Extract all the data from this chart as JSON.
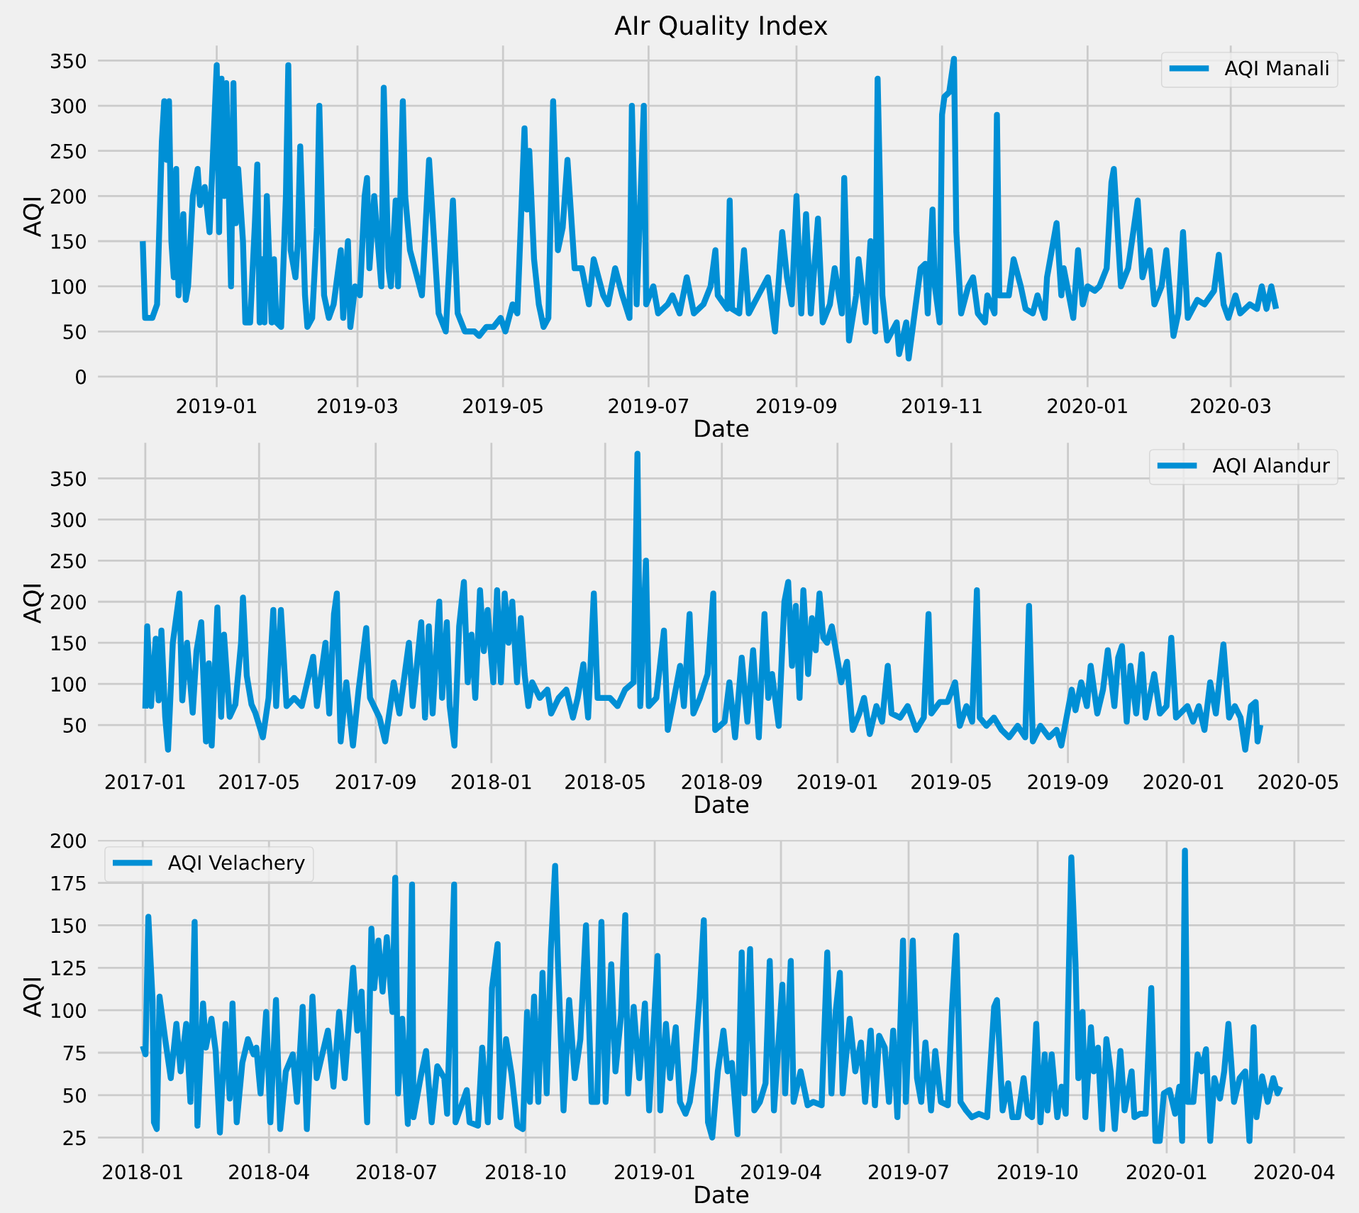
{
  "chart_data": [
    {
      "type": "line",
      "title": "AIr Quality Index",
      "xlabel": "Date",
      "ylabel": "AQI",
      "grid": true,
      "legend": "top right",
      "xlim": [
        "2018-11-11",
        "2020-04-19"
      ],
      "xticks": [
        "2019-01",
        "2019-03",
        "2019-05",
        "2019-07",
        "2019-09",
        "2019-11",
        "2020-01",
        "2020-03"
      ],
      "ylim": [
        -15,
        370
      ],
      "yticks": [
        0,
        50,
        100,
        150,
        200,
        250,
        300,
        350
      ],
      "series": [
        {
          "name": "AQI Manali",
          "color": "#008fd5",
          "x": [
            "2018-12-01",
            "2018-12-02",
            "2018-12-05",
            "2018-12-07",
            "2018-12-09",
            "2018-12-10",
            "2018-12-11",
            "2018-12-12",
            "2018-12-13",
            "2018-12-14",
            "2018-12-15",
            "2018-12-16",
            "2018-12-18",
            "2018-12-19",
            "2018-12-20",
            "2018-12-22",
            "2018-12-24",
            "2018-12-25",
            "2018-12-27",
            "2018-12-29",
            "2018-12-30",
            "2019-01-01",
            "2019-01-02",
            "2019-01-03",
            "2019-01-04",
            "2019-01-05",
            "2019-01-07",
            "2019-01-08",
            "2019-01-09",
            "2019-01-10",
            "2019-01-12",
            "2019-01-13",
            "2019-01-15",
            "2019-01-17",
            "2019-01-18",
            "2019-01-19",
            "2019-01-20",
            "2019-01-21",
            "2019-01-22",
            "2019-01-24",
            "2019-01-25",
            "2019-01-26",
            "2019-01-28",
            "2019-01-30",
            "2019-01-31",
            "2019-02-01",
            "2019-02-03",
            "2019-02-04",
            "2019-02-05",
            "2019-02-07",
            "2019-02-08",
            "2019-02-10",
            "2019-02-12",
            "2019-02-13",
            "2019-02-15",
            "2019-02-17",
            "2019-02-19",
            "2019-02-22",
            "2019-02-23",
            "2019-02-25",
            "2019-02-26",
            "2019-02-28",
            "2019-03-02",
            "2019-03-04",
            "2019-03-05",
            "2019-03-06",
            "2019-03-08",
            "2019-03-11",
            "2019-03-12",
            "2019-03-14",
            "2019-03-15",
            "2019-03-17",
            "2019-03-18",
            "2019-03-20",
            "2019-03-21",
            "2019-03-23",
            "2019-03-25",
            "2019-03-28",
            "2019-03-31",
            "2019-04-04",
            "2019-04-07",
            "2019-04-10",
            "2019-04-12",
            "2019-04-15",
            "2019-04-19",
            "2019-04-21",
            "2019-04-24",
            "2019-04-27",
            "2019-04-30",
            "2019-05-02",
            "2019-05-05",
            "2019-05-07",
            "2019-05-10",
            "2019-05-11",
            "2019-05-12",
            "2019-05-14",
            "2019-05-16",
            "2019-05-18",
            "2019-05-20",
            "2019-05-22",
            "2019-05-24",
            "2019-05-26",
            "2019-05-28",
            "2019-05-31",
            "2019-06-03",
            "2019-06-06",
            "2019-06-08",
            "2019-06-12",
            "2019-06-14",
            "2019-06-17",
            "2019-06-20",
            "2019-06-23",
            "2019-06-24",
            "2019-06-26",
            "2019-06-29",
            "2019-06-30",
            "2019-07-03",
            "2019-07-05",
            "2019-07-09",
            "2019-07-11",
            "2019-07-14",
            "2019-07-17",
            "2019-07-20",
            "2019-07-24",
            "2019-07-27",
            "2019-07-29",
            "2019-07-30",
            "2019-08-03",
            "2019-08-04",
            "2019-08-05",
            "2019-08-08",
            "2019-08-10",
            "2019-08-12",
            "2019-08-16",
            "2019-08-20",
            "2019-08-23",
            "2019-08-26",
            "2019-08-28",
            "2019-08-30",
            "2019-09-01",
            "2019-09-03",
            "2019-09-05",
            "2019-09-07",
            "2019-09-10",
            "2019-09-12",
            "2019-09-15",
            "2019-09-17",
            "2019-09-20",
            "2019-09-21",
            "2019-09-23",
            "2019-09-26",
            "2019-09-27",
            "2019-09-30",
            "2019-10-02",
            "2019-10-04",
            "2019-10-05",
            "2019-10-07",
            "2019-10-09",
            "2019-10-13",
            "2019-10-14",
            "2019-10-17",
            "2019-10-18",
            "2019-10-20",
            "2019-10-23",
            "2019-10-25",
            "2019-10-26",
            "2019-10-28",
            "2019-10-29",
            "2019-10-31",
            "2019-11-01",
            "2019-11-02",
            "2019-11-04",
            "2019-11-06",
            "2019-11-07",
            "2019-11-09",
            "2019-11-12",
            "2019-11-14",
            "2019-11-16",
            "2019-11-19",
            "2019-11-20",
            "2019-11-23",
            "2019-11-24",
            "2019-11-25",
            "2019-11-29",
            "2019-12-01",
            "2019-12-04",
            "2019-12-06",
            "2019-12-09",
            "2019-12-11",
            "2019-12-14",
            "2019-12-15",
            "2019-12-19",
            "2019-12-21",
            "2019-12-22",
            "2019-12-26",
            "2019-12-28",
            "2019-12-30",
            "2020-01-01",
            "2020-01-04",
            "2020-01-06",
            "2020-01-09",
            "2020-01-11",
            "2020-01-12",
            "2020-01-15",
            "2020-01-18",
            "2020-01-22",
            "2020-01-24",
            "2020-01-27",
            "2020-01-29",
            "2020-02-01",
            "2020-02-03",
            "2020-02-06",
            "2020-02-08",
            "2020-02-10",
            "2020-02-12",
            "2020-02-16",
            "2020-02-19",
            "2020-02-23",
            "2020-02-25",
            "2020-02-27",
            "2020-02-29",
            "2020-03-03",
            "2020-03-05",
            "2020-03-09",
            "2020-03-12",
            "2020-03-14",
            "2020-03-16",
            "2020-03-18",
            "2020-03-20"
          ],
          "values": [
            150,
            65,
            65,
            80,
            260,
            305,
            240,
            305,
            150,
            110,
            230,
            90,
            180,
            85,
            100,
            200,
            230,
            190,
            210,
            160,
            220,
            345,
            160,
            330,
            200,
            325,
            100,
            325,
            170,
            230,
            150,
            60,
            60,
            170,
            235,
            60,
            130,
            60,
            200,
            60,
            130,
            60,
            55,
            200,
            345,
            140,
            110,
            150,
            255,
            90,
            55,
            65,
            165,
            300,
            90,
            65,
            80,
            140,
            65,
            150,
            55,
            100,
            90,
            200,
            220,
            120,
            200,
            100,
            320,
            120,
            100,
            195,
            100,
            305,
            200,
            140,
            120,
            90,
            240,
            70,
            50,
            195,
            70,
            50,
            50,
            45,
            55,
            55,
            65,
            50,
            80,
            70,
            275,
            185,
            250,
            130,
            80,
            55,
            65,
            305,
            140,
            165,
            240,
            120,
            120,
            80,
            130,
            90,
            80,
            120,
            90,
            65,
            300,
            80,
            300,
            80,
            100,
            70,
            80,
            90,
            70,
            110,
            70,
            80,
            100,
            140,
            90,
            75,
            195,
            75,
            70,
            140,
            70,
            90,
            110,
            50,
            160,
            110,
            80,
            200,
            70,
            180,
            70,
            175,
            60,
            80,
            120,
            70,
            220,
            40,
            90,
            130,
            60,
            150,
            50,
            330,
            90,
            40,
            60,
            25,
            60,
            20,
            60,
            120,
            125,
            70,
            185,
            100,
            60,
            290,
            310,
            315,
            352,
            160,
            70,
            100,
            110,
            70,
            60,
            90,
            70,
            290,
            90,
            90,
            130,
            100,
            75,
            70,
            90,
            65,
            110,
            170,
            90,
            120,
            65,
            140,
            80,
            100,
            95,
            100,
            120,
            215,
            230,
            100,
            120,
            195,
            110,
            140,
            80,
            100,
            140,
            45,
            70,
            160,
            65,
            85,
            80,
            95,
            135,
            80,
            65,
            90,
            70,
            80,
            75,
            100,
            75,
            100,
            75
          ]
        }
      ]
    },
    {
      "type": "line",
      "xlabel": "Date",
      "ylabel": "AQI",
      "grid": true,
      "legend": "top right",
      "xlim": [
        "2016-11-09",
        "2020-06-22"
      ],
      "xticks": [
        "2017-01",
        "2017-05",
        "2017-09",
        "2018-01",
        "2018-05",
        "2018-09",
        "2019-01",
        "2019-05",
        "2019-09",
        "2020-01",
        "2020-05"
      ],
      "ylim": [
        0,
        397
      ],
      "yticks": [
        50,
        100,
        150,
        200,
        250,
        300,
        350
      ],
      "series": [
        {
          "name": "AQI Alandur",
          "color": "#008fd5",
          "x": [
            "2017-01-01",
            "2017-01-03",
            "2017-01-07",
            "2017-01-12",
            "2017-01-15",
            "2017-01-18",
            "2017-01-22",
            "2017-01-25",
            "2017-01-30",
            "2017-02-06",
            "2017-02-09",
            "2017-02-14",
            "2017-02-20",
            "2017-02-24",
            "2017-03-01",
            "2017-03-06",
            "2017-03-09",
            "2017-03-12",
            "2017-03-18",
            "2017-03-22",
            "2017-03-25",
            "2017-03-31",
            "2017-04-06",
            "2017-04-12",
            "2017-04-14",
            "2017-04-18",
            "2017-04-23",
            "2017-04-27",
            "2017-05-05",
            "2017-05-11",
            "2017-05-16",
            "2017-05-19",
            "2017-05-24",
            "2017-05-30",
            "2017-06-07",
            "2017-06-15",
            "2017-06-27",
            "2017-07-01",
            "2017-07-10",
            "2017-07-14",
            "2017-07-19",
            "2017-07-22",
            "2017-07-26",
            "2017-08-01",
            "2017-08-08",
            "2017-08-14",
            "2017-08-22",
            "2017-08-26",
            "2017-09-05",
            "2017-09-11",
            "2017-09-20",
            "2017-09-26",
            "2017-10-06",
            "2017-10-10",
            "2017-10-19",
            "2017-10-23",
            "2017-10-27",
            "2017-10-31",
            "2017-11-07",
            "2017-11-10",
            "2017-11-15",
            "2017-11-18",
            "2017-11-23",
            "2017-11-28",
            "2017-12-03",
            "2017-12-07",
            "2017-12-11",
            "2017-12-15",
            "2017-12-20",
            "2017-12-24",
            "2017-12-28",
            "2018-01-03",
            "2018-01-07",
            "2018-01-11",
            "2018-01-15",
            "2018-01-19",
            "2018-01-23",
            "2018-01-28",
            "2018-02-01",
            "2018-02-05",
            "2018-02-09",
            "2018-02-13",
            "2018-02-21",
            "2018-03-01",
            "2018-03-05",
            "2018-03-13",
            "2018-03-21",
            "2018-03-28",
            "2018-04-02",
            "2018-04-08",
            "2018-04-13",
            "2018-04-19",
            "2018-04-23",
            "2018-05-06",
            "2018-05-14",
            "2018-05-22",
            "2018-05-31",
            "2018-06-04",
            "2018-06-07",
            "2018-06-13",
            "2018-06-16",
            "2018-06-24",
            "2018-07-02",
            "2018-07-06",
            "2018-07-13",
            "2018-07-19",
            "2018-07-23",
            "2018-07-29",
            "2018-08-02",
            "2018-08-09",
            "2018-08-17",
            "2018-08-23",
            "2018-08-25",
            "2018-09-04",
            "2018-09-09",
            "2018-09-15",
            "2018-09-22",
            "2018-09-28",
            "2018-10-04",
            "2018-10-10",
            "2018-10-16",
            "2018-10-20",
            "2018-10-24",
            "2018-10-31",
            "2018-11-06",
            "2018-11-10",
            "2018-11-14",
            "2018-11-18",
            "2018-11-22",
            "2018-11-26",
            "2018-12-01",
            "2018-12-05",
            "2018-12-09",
            "2018-12-13",
            "2018-12-17",
            "2018-12-21",
            "2018-12-26",
            "2019-01-05",
            "2019-01-11",
            "2019-01-17",
            "2019-01-24",
            "2019-01-29",
            "2019-02-04",
            "2019-02-11",
            "2019-02-17",
            "2019-02-23",
            "2019-02-27",
            "2019-03-08",
            "2019-03-16",
            "2019-03-25",
            "2019-04-02",
            "2019-04-07",
            "2019-04-10",
            "2019-04-19",
            "2019-04-27",
            "2019-05-05",
            "2019-05-10",
            "2019-05-17",
            "2019-05-23",
            "2019-05-28",
            "2019-05-31",
            "2019-06-07",
            "2019-06-15",
            "2019-06-23",
            "2019-07-01",
            "2019-07-10",
            "2019-07-18",
            "2019-07-22",
            "2019-07-26",
            "2019-08-03",
            "2019-08-12",
            "2019-08-20",
            "2019-08-25",
            "2019-09-05",
            "2019-09-09",
            "2019-09-15",
            "2019-09-21",
            "2019-09-25",
            "2019-10-02",
            "2019-10-08",
            "2019-10-13",
            "2019-10-20",
            "2019-10-24",
            "2019-10-28",
            "2019-11-02",
            "2019-11-06",
            "2019-11-12",
            "2019-11-18",
            "2019-11-22",
            "2019-12-01",
            "2019-12-07",
            "2019-12-14",
            "2019-12-19",
            "2019-12-24",
            "2020-01-05",
            "2020-01-11",
            "2020-01-17",
            "2020-01-23",
            "2020-01-29",
            "2020-02-04",
            "2020-02-12",
            "2020-02-18",
            "2020-02-24",
            "2020-03-01",
            "2020-03-06",
            "2020-03-12",
            "2020-03-17",
            "2020-03-19",
            "2020-03-22"
          ],
          "values": [
            70,
            170,
            73,
            155,
            80,
            165,
            60,
            20,
            150,
            210,
            80,
            150,
            65,
            140,
            175,
            30,
            125,
            25,
            193,
            60,
            160,
            60,
            75,
            150,
            205,
            110,
            75,
            65,
            35,
            83,
            190,
            73,
            190,
            73,
            83,
            73,
            133,
            73,
            150,
            64,
            185,
            210,
            30,
            102,
            25,
            93,
            168,
            83,
            59,
            30,
            102,
            64,
            150,
            73,
            175,
            59,
            170,
            64,
            200,
            83,
            175,
            73,
            25,
            170,
            224,
            102,
            160,
            83,
            214,
            140,
            190,
            102,
            214,
            102,
            210,
            150,
            200,
            102,
            180,
            112,
            73,
            102,
            83,
            93,
            64,
            83,
            93,
            59,
            83,
            124,
            59,
            210,
            83,
            83,
            73,
            93,
            102,
            380,
            73,
            250,
            73,
            83,
            165,
            44,
            85,
            122,
            73,
            185,
            64,
            83,
            112,
            210,
            44,
            54,
            102,
            35,
            132,
            54,
            141,
            35,
            185,
            83,
            112,
            49,
            200,
            224,
            122,
            195,
            83,
            214,
            112,
            180,
            141,
            210,
            156,
            150,
            170,
            102,
            127,
            44,
            64,
            83,
            39,
            73,
            54,
            122,
            64,
            59,
            73,
            44,
            59,
            185,
            64,
            78,
            78,
            102,
            49,
            73,
            54,
            214,
            59,
            49,
            59,
            44,
            35,
            49,
            35,
            195,
            30,
            49,
            35,
            44,
            25,
            93,
            68,
            102,
            73,
            122,
            64,
            93,
            141,
            73,
            132,
            146,
            54,
            122,
            64,
            136,
            59,
            112,
            64,
            73,
            156,
            59,
            73,
            54,
            73,
            44,
            102,
            64,
            148,
            59,
            73,
            59,
            20,
            73,
            78,
            30,
            50
          ]
        }
      ]
    },
    {
      "type": "line",
      "xlabel": "Date",
      "ylabel": "AQI",
      "grid": true,
      "legend": "top left",
      "xlim": [
        "2017-11-28",
        "2020-05-09"
      ],
      "xticks": [
        "2018-01",
        "2018-04",
        "2018-07",
        "2018-10",
        "2019-01",
        "2019-04",
        "2019-07",
        "2019-10",
        "2020-01",
        "2020-04"
      ],
      "ylim": [
        14,
        202
      ],
      "yticks": [
        25,
        50,
        75,
        100,
        125,
        150,
        175,
        200
      ],
      "series": [
        {
          "name": "AQI Velachery",
          "color": "#008fd5",
          "x": [
            "2018-01-01",
            "2018-01-03",
            "2018-01-05",
            "2018-01-08",
            "2018-01-09",
            "2018-01-11",
            "2018-01-13",
            "2018-01-17",
            "2018-01-21",
            "2018-01-25",
            "2018-01-28",
            "2018-02-01",
            "2018-02-04",
            "2018-02-07",
            "2018-02-09",
            "2018-02-13",
            "2018-02-15",
            "2018-02-19",
            "2018-02-22",
            "2018-02-25",
            "2018-03-01",
            "2018-03-04",
            "2018-03-06",
            "2018-03-09",
            "2018-03-13",
            "2018-03-17",
            "2018-03-21",
            "2018-03-23",
            "2018-03-26",
            "2018-03-30",
            "2018-04-02",
            "2018-04-06",
            "2018-04-09",
            "2018-04-13",
            "2018-04-18",
            "2018-04-21",
            "2018-04-25",
            "2018-04-28",
            "2018-05-02",
            "2018-05-05",
            "2018-05-09",
            "2018-05-13",
            "2018-05-17",
            "2018-05-21",
            "2018-05-25",
            "2018-05-31",
            "2018-06-03",
            "2018-06-06",
            "2018-06-10",
            "2018-06-13",
            "2018-06-15",
            "2018-06-18",
            "2018-06-21",
            "2018-06-24",
            "2018-06-28",
            "2018-06-30",
            "2018-07-02",
            "2018-07-05",
            "2018-07-09",
            "2018-07-12",
            "2018-07-13",
            "2018-07-18",
            "2018-07-22",
            "2018-07-26",
            "2018-07-30",
            "2018-08-04",
            "2018-08-06",
            "2018-08-11",
            "2018-08-12",
            "2018-08-20",
            "2018-08-22",
            "2018-08-28",
            "2018-08-31",
            "2018-09-04",
            "2018-09-07",
            "2018-09-11",
            "2018-09-13",
            "2018-09-17",
            "2018-09-21",
            "2018-09-25",
            "2018-09-29",
            "2018-10-02",
            "2018-10-04",
            "2018-10-07",
            "2018-10-10",
            "2018-10-13",
            "2018-10-16",
            "2018-10-19",
            "2018-10-22",
            "2018-10-24",
            "2018-10-28",
            "2018-11-01",
            "2018-11-05",
            "2018-11-09",
            "2018-11-13",
            "2018-11-17",
            "2018-11-21",
            "2018-11-24",
            "2018-11-27",
            "2018-12-01",
            "2018-12-04",
            "2018-12-08",
            "2018-12-11",
            "2018-12-13",
            "2018-12-17",
            "2018-12-21",
            "2018-12-25",
            "2018-12-28",
            "2019-01-03",
            "2019-01-05",
            "2019-01-09",
            "2019-01-12",
            "2019-01-16",
            "2019-01-19",
            "2019-01-23",
            "2019-01-26",
            "2019-01-29",
            "2019-02-02",
            "2019-02-05",
            "2019-02-08",
            "2019-02-11",
            "2019-02-15",
            "2019-02-19",
            "2019-02-22",
            "2019-02-25",
            "2019-03-01",
            "2019-03-04",
            "2019-03-06",
            "2019-03-10",
            "2019-03-13",
            "2019-03-17",
            "2019-03-21",
            "2019-03-24",
            "2019-03-27",
            "2019-04-02",
            "2019-04-04",
            "2019-04-08",
            "2019-04-10",
            "2019-04-15",
            "2019-04-20",
            "2019-04-24",
            "2019-04-30",
            "2019-05-04",
            "2019-05-07",
            "2019-05-10",
            "2019-05-13",
            "2019-05-15",
            "2019-05-20",
            "2019-05-24",
            "2019-05-28",
            "2019-05-31",
            "2019-06-04",
            "2019-06-07",
            "2019-06-10",
            "2019-06-14",
            "2019-06-17",
            "2019-06-20",
            "2019-06-23",
            "2019-06-27",
            "2019-06-29",
            "2019-07-04",
            "2019-07-07",
            "2019-07-10",
            "2019-07-13",
            "2019-07-17",
            "2019-07-20",
            "2019-07-24",
            "2019-07-29",
            "2019-08-01",
            "2019-08-04",
            "2019-08-07",
            "2019-08-11",
            "2019-08-15",
            "2019-08-20",
            "2019-08-26",
            "2019-08-31",
            "2019-09-02",
            "2019-09-06",
            "2019-09-10",
            "2019-09-13",
            "2019-09-17",
            "2019-09-21",
            "2019-09-24",
            "2019-09-27",
            "2019-09-30",
            "2019-10-03",
            "2019-10-06",
            "2019-10-08",
            "2019-10-11",
            "2019-10-15",
            "2019-10-18",
            "2019-10-21",
            "2019-10-25",
            "2019-10-28",
            "2019-10-30",
            "2019-11-02",
            "2019-11-04",
            "2019-11-08",
            "2019-11-10",
            "2019-11-13",
            "2019-11-16",
            "2019-11-19",
            "2019-11-22",
            "2019-11-25",
            "2019-11-29",
            "2019-12-02",
            "2019-12-07",
            "2019-12-09",
            "2019-12-13",
            "2019-12-17",
            "2019-12-21",
            "2019-12-24",
            "2019-12-27",
            "2019-12-30",
            "2020-01-03",
            "2020-01-07",
            "2020-01-10",
            "2020-01-12",
            "2020-01-14",
            "2020-01-16",
            "2020-01-20",
            "2020-01-23",
            "2020-01-26",
            "2020-01-29",
            "2020-02-01",
            "2020-02-04",
            "2020-02-08",
            "2020-02-11",
            "2020-02-14",
            "2020-02-18",
            "2020-02-22",
            "2020-02-26",
            "2020-02-29",
            "2020-03-03",
            "2020-03-05",
            "2020-03-09",
            "2020-03-13",
            "2020-03-17",
            "2020-03-20",
            "2020-03-22"
          ],
          "values": [
            79,
            74,
            155,
            106,
            34,
            30,
            108,
            83,
            60,
            92,
            64,
            92,
            46,
            152,
            32,
            104,
            78,
            95,
            76,
            28,
            92,
            48,
            104,
            34,
            69,
            83,
            74,
            78,
            51,
            99,
            34,
            106,
            30,
            64,
            74,
            46,
            102,
            30,
            108,
            60,
            74,
            88,
            55,
            99,
            60,
            125,
            88,
            111,
            34,
            148,
            113,
            141,
            111,
            143,
            99,
            178,
            51,
            95,
            33,
            174,
            37,
            60,
            76,
            34,
            67,
            60,
            39,
            174,
            34,
            53,
            34,
            32,
            78,
            34,
            113,
            139,
            37,
            83,
            62,
            32,
            30,
            99,
            46,
            108,
            46,
            122,
            51,
            136,
            185,
            129,
            41,
            106,
            60,
            83,
            150,
            46,
            46,
            152,
            46,
            127,
            64,
            97,
            156,
            51,
            102,
            60,
            104,
            41,
            132,
            41,
            92,
            60,
            90,
            46,
            39,
            46,
            64,
            108,
            153,
            34,
            25,
            64,
            88,
            64,
            69,
            27,
            134,
            51,
            136,
            41,
            46,
            57,
            129,
            41,
            115,
            51,
            129,
            46,
            64,
            44,
            46,
            44,
            134,
            51,
            99,
            122,
            51,
            95,
            64,
            81,
            46,
            88,
            44,
            85,
            78,
            46,
            88,
            37,
            141,
            46,
            141,
            60,
            46,
            81,
            41,
            76,
            46,
            44,
            102,
            144,
            46,
            41,
            37,
            39,
            37,
            102,
            106,
            41,
            57,
            37,
            37,
            60,
            39,
            37,
            92,
            34,
            74,
            41,
            74,
            37,
            55,
            39,
            190,
            127,
            60,
            99,
            37,
            90,
            64,
            78,
            30,
            83,
            64,
            30,
            76,
            41,
            64,
            37,
            39,
            39,
            113,
            23,
            23,
            51,
            53,
            39,
            55,
            23,
            194,
            46,
            46,
            74,
            64,
            77,
            23,
            60,
            48,
            64,
            92,
            46,
            60,
            64,
            23,
            90,
            37,
            61,
            46,
            60,
            51,
            55
          ]
        }
      ]
    }
  ]
}
